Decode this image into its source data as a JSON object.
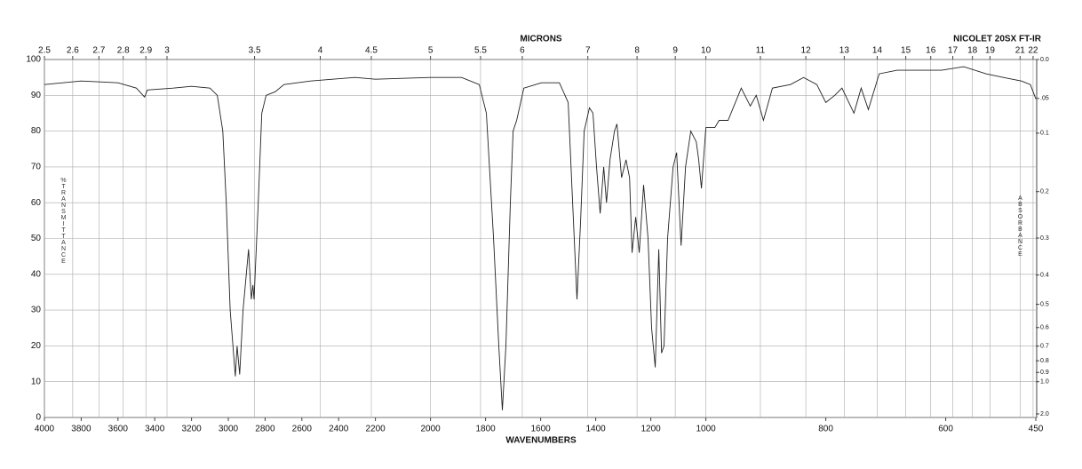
{
  "chart_data": {
    "type": "line",
    "title": "NICOLET 20SX FT-IR",
    "x_label": "WAVENUMBERS",
    "x2_label": "MICRONS",
    "y_label": "%TRANSMITTANCE",
    "y2_label": "ABSORBANCE",
    "xlim": [
      4000,
      450
    ],
    "ylim": [
      0,
      100
    ],
    "xticks": [
      4000,
      3800,
      3600,
      3400,
      3200,
      3000,
      2800,
      2600,
      2400,
      2200,
      2000,
      1800,
      1600,
      1400,
      1200,
      1000,
      800,
      600,
      450
    ],
    "x2ticks": [
      2.5,
      2.6,
      2.7,
      2.8,
      2.9,
      3,
      3.5,
      4,
      4.5,
      5,
      5.5,
      6,
      7,
      8,
      9,
      10,
      11,
      12,
      13,
      14,
      15,
      16,
      17,
      18,
      19,
      21,
      22
    ],
    "yticks": [
      0,
      10,
      20,
      30,
      40,
      50,
      60,
      70,
      80,
      90,
      100
    ],
    "y2ticks": [
      {
        "value": 0,
        "label": "0.0"
      },
      {
        "value": 0.05,
        "label": ".05"
      },
      0.1,
      0.2,
      0.3,
      0.4,
      0.5,
      0.6,
      0.7,
      0.8,
      0.9,
      {
        "value": 1,
        "label": "1.0"
      },
      {
        "value": 2,
        "label": "2.0"
      }
    ],
    "grid": true,
    "color": "#222222",
    "x": [
      4000,
      3800,
      3600,
      3500,
      3455,
      3440,
      3300,
      3200,
      3100,
      3060,
      3030,
      3011,
      2990,
      2962,
      2952,
      2938,
      2920,
      2890,
      2875,
      2866,
      2860,
      2837,
      2818,
      2794,
      2745,
      2697,
      2552,
      2311,
      2200,
      2000,
      1887,
      1823,
      1797,
      1771,
      1752,
      1739,
      1726,
      1710,
      1700,
      1687,
      1661,
      1597,
      1532,
      1500,
      1484,
      1468,
      1455,
      1442,
      1423,
      1410,
      1397,
      1384,
      1371,
      1361,
      1348,
      1332,
      1323,
      1306,
      1290,
      1277,
      1268,
      1255,
      1242,
      1226,
      1210,
      1197,
      1184,
      1171,
      1161,
      1152,
      1139,
      1119,
      1106,
      1090,
      1074,
      1055,
      1035,
      1026,
      1016,
      1000,
      985,
      978,
      963,
      941,
      926,
      916,
      904,
      889,
      859,
      837,
      815,
      800,
      785,
      773,
      753,
      741,
      729,
      711,
      681,
      607,
      570,
      533,
      504,
      474,
      459,
      450
    ],
    "values": [
      93,
      94,
      93.5,
      92,
      89.5,
      91.5,
      92,
      92.5,
      92,
      90,
      80,
      60,
      30,
      11.5,
      20,
      12,
      30,
      47,
      33,
      37,
      33,
      60,
      85,
      90,
      91,
      93,
      94,
      95,
      94.5,
      95,
      95,
      93,
      85,
      50,
      20,
      2,
      20,
      60,
      80,
      83,
      92,
      93.5,
      93.5,
      88,
      60,
      33,
      55,
      80,
      86.5,
      85,
      70,
      57,
      70,
      60,
      72,
      80,
      82,
      67,
      72,
      67,
      46,
      56,
      46,
      65,
      50,
      25,
      14,
      47,
      18,
      20,
      50,
      70,
      74,
      48,
      70,
      80,
      77,
      72,
      64,
      81,
      81,
      83,
      83,
      92,
      87,
      90,
      83,
      92,
      93,
      95,
      93,
      88,
      90,
      92,
      85,
      92,
      86,
      96,
      97,
      97,
      98,
      96,
      95,
      94,
      93,
      89
    ]
  }
}
